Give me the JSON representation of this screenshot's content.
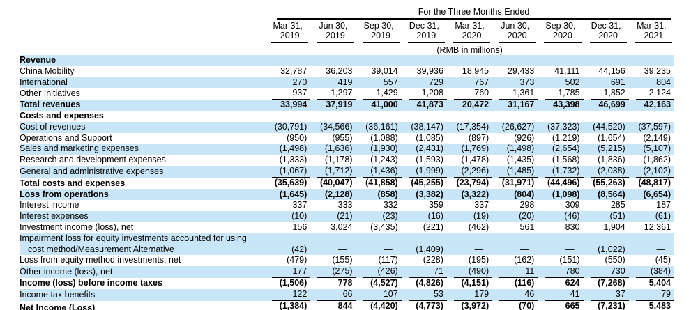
{
  "colors": {
    "row_shade": "#c8e6f8",
    "text": "#000000",
    "background": "#ffffff"
  },
  "header": {
    "title": "For the Three Months Ended",
    "unit_note": "(RMB in millions)",
    "columns": [
      {
        "line1": "Mar 31,",
        "line2": "2019"
      },
      {
        "line1": "Jun 30,",
        "line2": "2019"
      },
      {
        "line1": "Sep 30,",
        "line2": "2019"
      },
      {
        "line1": "Dec 31,",
        "line2": "2019"
      },
      {
        "line1": "Mar 31,",
        "line2": "2020"
      },
      {
        "line1": "Jun 30,",
        "line2": "2020"
      },
      {
        "line1": "Sep 30,",
        "line2": "2020"
      },
      {
        "line1": "Dec 31,",
        "line2": "2020"
      },
      {
        "line1": "Mar 31,",
        "line2": "2021"
      }
    ]
  },
  "table": {
    "rows": [
      {
        "label": "Revenue",
        "bold": true,
        "shaded": true,
        "underline": "none",
        "values": []
      },
      {
        "label": "China Mobility",
        "bold": false,
        "shaded": false,
        "underline": "none",
        "values": [
          "32,787",
          "36,203",
          "39,014",
          "39,936",
          "18,945",
          "29,433",
          "41,111",
          "44,156",
          "39,235"
        ]
      },
      {
        "label": "International",
        "bold": false,
        "shaded": true,
        "underline": "none",
        "values": [
          "270",
          "419",
          "557",
          "729",
          "767",
          "373",
          "502",
          "691",
          "804"
        ]
      },
      {
        "label": "Other Initiatives",
        "bold": false,
        "shaded": false,
        "underline": "single",
        "values": [
          "937",
          "1,297",
          "1,429",
          "1,208",
          "760",
          "1,361",
          "1,785",
          "1,852",
          "2,124"
        ]
      },
      {
        "label": "Total revenues",
        "bold": true,
        "shaded": true,
        "underline": "none",
        "values": [
          "33,994",
          "37,919",
          "41,000",
          "41,873",
          "20,472",
          "31,167",
          "43,398",
          "46,699",
          "42,163"
        ]
      },
      {
        "label": "Costs and expenses",
        "bold": true,
        "shaded": false,
        "underline": "none",
        "values": []
      },
      {
        "label": "Cost of revenues",
        "bold": false,
        "shaded": true,
        "underline": "none",
        "values": [
          "(30,791)",
          "(34,566)",
          "(36,161)",
          "(38,147)",
          "(17,354)",
          "(26,627)",
          "(37,323)",
          "(44,520)",
          "(37,597)"
        ]
      },
      {
        "label": "Operations and Support",
        "bold": false,
        "shaded": false,
        "underline": "none",
        "values": [
          "(950)",
          "(955)",
          "(1,088)",
          "(1,085)",
          "(897)",
          "(926)",
          "(1,219)",
          "(1,654)",
          "(2,149)"
        ]
      },
      {
        "label": "Sales and marketing expenses",
        "bold": false,
        "shaded": true,
        "underline": "none",
        "values": [
          "(1,498)",
          "(1,636)",
          "(1,930)",
          "(2,431)",
          "(1,769)",
          "(1,498)",
          "(2,654)",
          "(5,215)",
          "(5,107)"
        ]
      },
      {
        "label": "Research and development expenses",
        "bold": false,
        "shaded": false,
        "underline": "none",
        "values": [
          "(1,333)",
          "(1,178)",
          "(1,243)",
          "(1,593)",
          "(1,478)",
          "(1,435)",
          "(1,568)",
          "(1,836)",
          "(1,862)"
        ]
      },
      {
        "label": "General and administrative expenses",
        "bold": false,
        "shaded": true,
        "underline": "single",
        "values": [
          "(1,067)",
          "(1,712)",
          "(1,436)",
          "(1,999)",
          "(2,296)",
          "(1,485)",
          "(1,732)",
          "(2,038)",
          "(2,102)"
        ]
      },
      {
        "label": "Total costs and expenses",
        "bold": true,
        "shaded": false,
        "underline": "single",
        "values": [
          "(35,639)",
          "(40,047)",
          "(41,858)",
          "(45,255)",
          "(23,794)",
          "(31,971)",
          "(44,496)",
          "(55,263)",
          "(48,817)"
        ]
      },
      {
        "label": "Loss from operations",
        "bold": true,
        "shaded": true,
        "underline": "none",
        "values": [
          "(1,645)",
          "(2,128)",
          "(858)",
          "(3,382)",
          "(3,322)",
          "(804)",
          "(1,098)",
          "(8,564)",
          "(6,654)"
        ]
      },
      {
        "label": "Interest income",
        "bold": false,
        "shaded": false,
        "underline": "none",
        "values": [
          "337",
          "333",
          "332",
          "359",
          "337",
          "298",
          "309",
          "285",
          "187"
        ]
      },
      {
        "label": "Interest expenses",
        "bold": false,
        "shaded": true,
        "underline": "none",
        "values": [
          "(10)",
          "(21)",
          "(23)",
          "(16)",
          "(19)",
          "(20)",
          "(46)",
          "(51)",
          "(61)"
        ]
      },
      {
        "label": "Investment income (loss), net",
        "bold": false,
        "shaded": false,
        "underline": "none",
        "values": [
          "156",
          "3,024",
          "(3,435)",
          "(221)",
          "(462)",
          "561",
          "830",
          "1,904",
          "12,361"
        ]
      },
      {
        "label": "Impairment loss for equity investments accounted for using",
        "label2": "cost method/Measurement Alternative",
        "bold": false,
        "shaded": true,
        "underline": "none",
        "values": [
          "(42)",
          "—",
          "—",
          "(1,409)",
          "—",
          "—",
          "—",
          "(1,022)",
          "—"
        ]
      },
      {
        "label": "Loss from equity method investments, net",
        "bold": false,
        "shaded": false,
        "underline": "none",
        "values": [
          "(479)",
          "(155)",
          "(117)",
          "(228)",
          "(195)",
          "(162)",
          "(151)",
          "(550)",
          "(45)"
        ]
      },
      {
        "label": "Other income (loss), net",
        "bold": false,
        "shaded": true,
        "underline": "single",
        "values": [
          "177",
          "(275)",
          "(426)",
          "71",
          "(490)",
          "11",
          "780",
          "730",
          "(384)"
        ]
      },
      {
        "label": "Income (loss) before income taxes",
        "bold": true,
        "shaded": false,
        "underline": "none",
        "values": [
          "(1,506)",
          "778",
          "(4,527)",
          "(4,826)",
          "(4,151)",
          "(116)",
          "624",
          "(7,268)",
          "5,404"
        ]
      },
      {
        "label": "Income tax benefits",
        "bold": false,
        "shaded": true,
        "underline": "single",
        "values": [
          "122",
          "66",
          "107",
          "53",
          "179",
          "46",
          "41",
          "37",
          "79"
        ]
      },
      {
        "label": "Net Income (Loss)",
        "bold": true,
        "shaded": false,
        "underline": "double",
        "values": [
          "(1,384)",
          "844",
          "(4,420)",
          "(4,773)",
          "(3,972)",
          "(70)",
          "665",
          "(7,231)",
          "5,483"
        ]
      }
    ]
  }
}
